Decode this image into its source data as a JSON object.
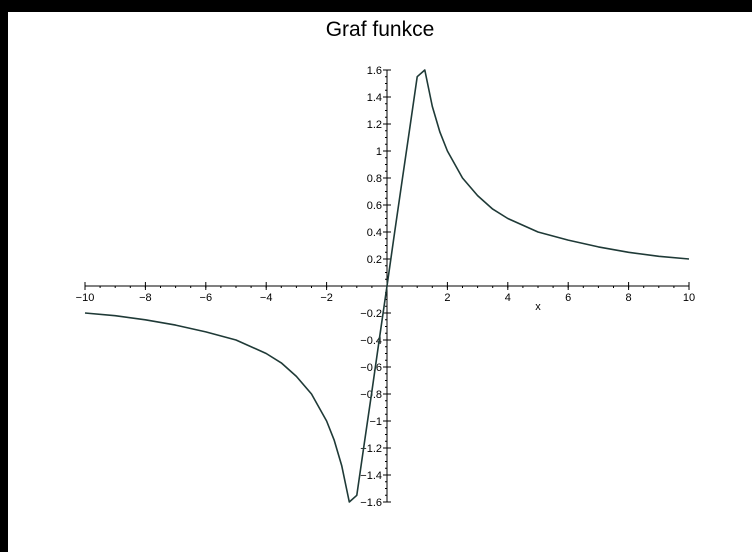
{
  "chart_data": {
    "type": "line",
    "title": "Graf funkce",
    "xlabel": "x",
    "ylabel": "",
    "xlim": [
      -10,
      10
    ],
    "ylim": [
      -1.6,
      1.6
    ],
    "grid": false,
    "x_ticks": [
      -10,
      -8,
      -6,
      -4,
      -2,
      2,
      4,
      6,
      8,
      10
    ],
    "x_tick_labels": [
      "−10",
      "−8",
      "−6",
      "−4",
      "−2",
      "2",
      "4",
      "6",
      "8",
      "10"
    ],
    "y_ticks": [
      1.6,
      1.4,
      1.2,
      1,
      0.8,
      0.6,
      0.4,
      0.2,
      -0.2,
      -0.4,
      -0.6,
      -0.8,
      -1,
      -1.2,
      -1.4,
      -1.6
    ],
    "y_tick_labels": [
      "1.6",
      "1.4",
      "1.2",
      "1",
      "0.8",
      "0.6",
      "0.4",
      "0.2",
      "−0.2",
      "−0.4",
      "−0.6",
      "−0.8",
      "−1",
      "−1.2",
      "−1.4",
      "−1.6"
    ],
    "series": [
      {
        "color": "#1f3a37",
        "x": [
          -10,
          -9,
          -8,
          -7,
          -6,
          -5,
          -4,
          -3.5,
          -3,
          -2.5,
          -2,
          -1.75,
          -1.5,
          -1.25,
          -1,
          -0.75,
          -0.5,
          -0.25,
          0,
          0.25,
          0.5,
          0.75,
          1,
          1.25,
          1.5,
          1.75,
          2,
          2.5,
          3,
          3.5,
          4,
          5,
          6,
          7,
          8,
          9,
          10
        ],
        "y": [
          -0.2,
          -0.22,
          -0.25,
          -0.29,
          -0.34,
          -0.4,
          -0.5,
          -0.57,
          -0.67,
          -0.8,
          -1.0,
          -1.14,
          -1.33,
          -1.6,
          -1.55,
          -1.16,
          -0.78,
          -0.39,
          0,
          0.39,
          0.78,
          1.16,
          1.55,
          1.6,
          1.33,
          1.14,
          1.0,
          0.8,
          0.67,
          0.57,
          0.5,
          0.4,
          0.34,
          0.29,
          0.25,
          0.22,
          0.2
        ]
      }
    ]
  }
}
